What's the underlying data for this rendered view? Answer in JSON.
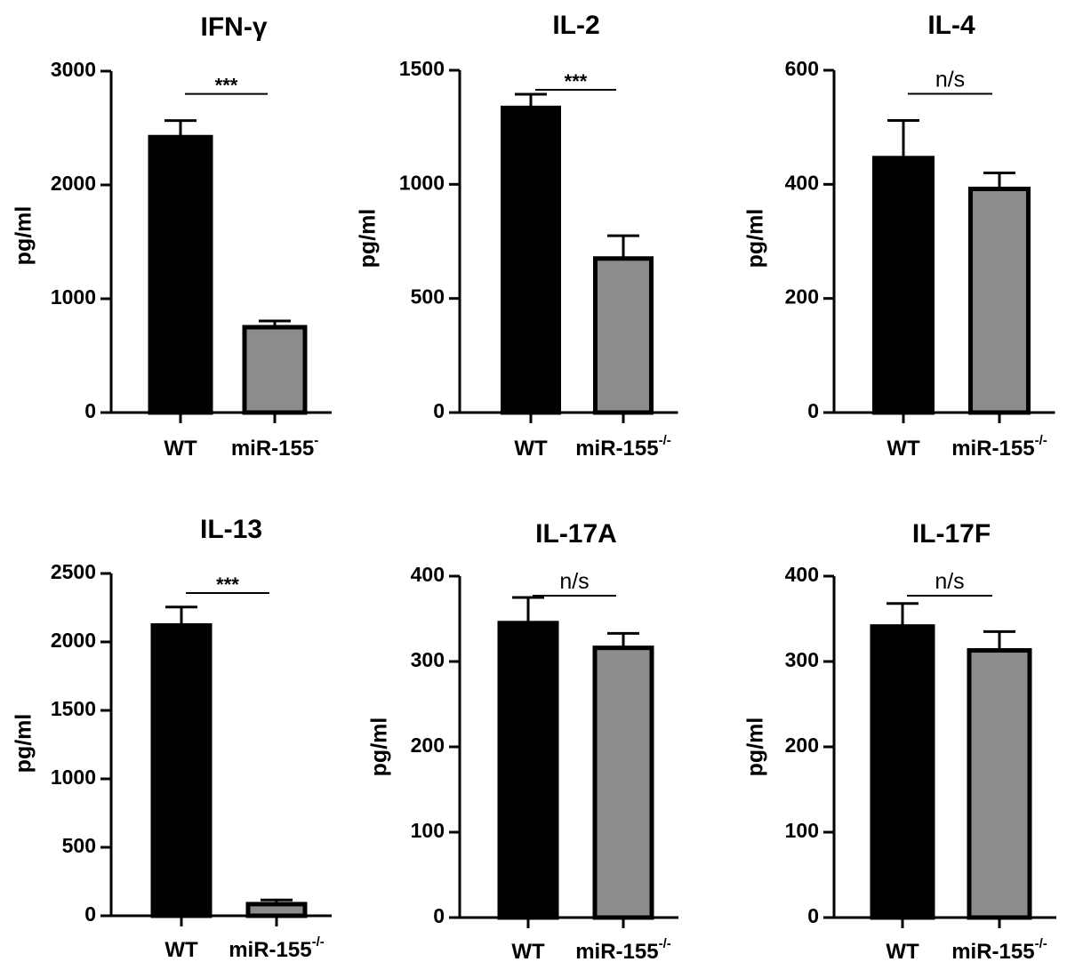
{
  "chart_data": [
    {
      "type": "bar",
      "title": "IFN-γ",
      "ylabel": "pg/ml",
      "ylim": [
        0,
        3000
      ],
      "yticks": [
        0,
        1000,
        2000,
        3000
      ],
      "categories": [
        {
          "name": "WT",
          "sup": "",
          "color": "#000000"
        },
        {
          "name": "miR-155",
          "sup": "-",
          "color": "#8c8c8c"
        }
      ],
      "values": [
        2420,
        750
      ],
      "errors": [
        145,
        55
      ],
      "significance": "***"
    },
    {
      "type": "bar",
      "title": "IL-2",
      "ylabel": "pg/ml",
      "ylim": [
        0,
        1500
      ],
      "yticks": [
        0,
        500,
        1000,
        1500
      ],
      "categories": [
        {
          "name": "WT",
          "sup": "",
          "color": "#000000"
        },
        {
          "name": "miR-155",
          "sup": "-/-",
          "color": "#8c8c8c"
        }
      ],
      "values": [
        1335,
        675
      ],
      "errors": [
        60,
        100
      ],
      "significance": "***"
    },
    {
      "type": "bar",
      "title": "IL-4",
      "ylabel": "pg/ml",
      "ylim": [
        0,
        600
      ],
      "yticks": [
        0,
        200,
        400,
        600
      ],
      "categories": [
        {
          "name": "WT",
          "sup": "",
          "color": "#000000"
        },
        {
          "name": "miR-155",
          "sup": "-/-",
          "color": "#8c8c8c"
        }
      ],
      "values": [
        446,
        392
      ],
      "errors": [
        66,
        28
      ],
      "significance": "n/s"
    },
    {
      "type": "bar",
      "title": "IL-13",
      "ylabel": "pg/ml",
      "ylim": [
        0,
        2500
      ],
      "yticks": [
        0,
        500,
        1000,
        1500,
        2000,
        2500
      ],
      "categories": [
        {
          "name": "WT",
          "sup": "",
          "color": "#000000"
        },
        {
          "name": "miR-155",
          "sup": "-/-",
          "color": "#8c8c8c"
        }
      ],
      "values": [
        2120,
        85
      ],
      "errors": [
        135,
        30
      ],
      "significance": "***"
    },
    {
      "type": "bar",
      "title": "IL-17A",
      "ylabel": "pg/ml",
      "ylim": [
        0,
        400
      ],
      "yticks": [
        0,
        100,
        200,
        300,
        400
      ],
      "categories": [
        {
          "name": "WT",
          "sup": "",
          "color": "#000000"
        },
        {
          "name": "miR-155",
          "sup": "-/-",
          "color": "#8c8c8c"
        }
      ],
      "values": [
        345,
        316
      ],
      "errors": [
        30,
        17
      ],
      "significance": "n/s"
    },
    {
      "type": "bar",
      "title": "IL-17F",
      "ylabel": "pg/ml",
      "ylim": [
        0,
        400
      ],
      "yticks": [
        0,
        100,
        200,
        300,
        400
      ],
      "categories": [
        {
          "name": "WT",
          "sup": "",
          "color": "#000000"
        },
        {
          "name": "miR-155",
          "sup": "-/-",
          "color": "#8c8c8c"
        }
      ],
      "values": [
        341,
        313
      ],
      "errors": [
        27,
        22
      ],
      "significance": "n/s"
    }
  ]
}
